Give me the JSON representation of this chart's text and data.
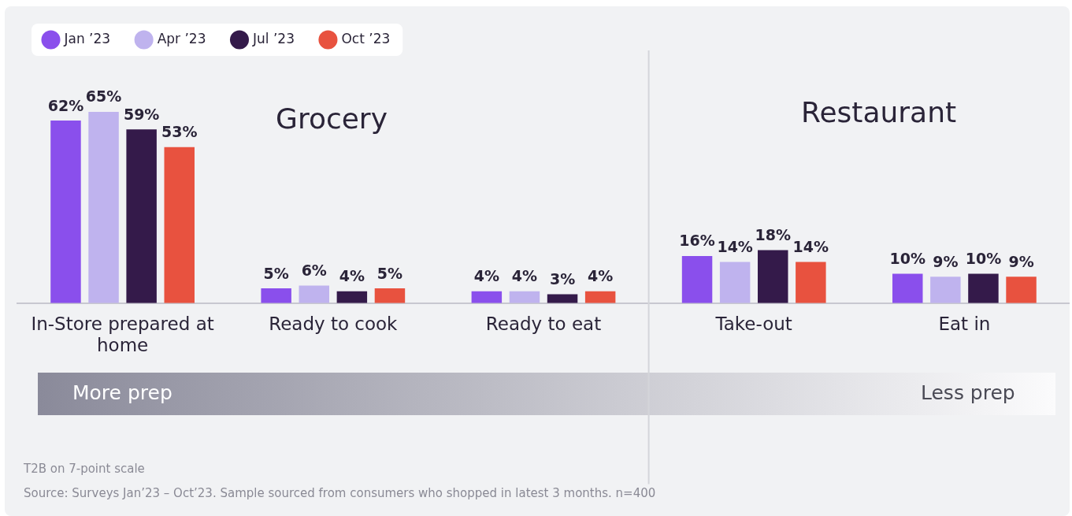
{
  "chart_data": {
    "type": "bar",
    "categories": [
      "In-Store prepared at home",
      "Ready to cook",
      "Ready to eat",
      "Take-out",
      "Eat in"
    ],
    "series": [
      {
        "name": "Jan ’23",
        "color": "#8a4fec",
        "values": [
          62,
          5,
          4,
          16,
          10
        ],
        "value_labels": [
          "62%",
          "5%",
          "4%",
          "16%",
          "10%"
        ]
      },
      {
        "name": "Apr ’23",
        "color": "#bfb3ee",
        "values": [
          65,
          6,
          4,
          14,
          9
        ],
        "value_labels": [
          "65%",
          "6%",
          "4%",
          "14%",
          "9%"
        ]
      },
      {
        "name": "Jul ’23",
        "color": "#341a4a",
        "values": [
          59,
          4,
          3,
          18,
          10
        ],
        "value_labels": [
          "59%",
          "4%",
          "3%",
          "18%",
          "10%"
        ]
      },
      {
        "name": "Oct ’23",
        "color": "#e8523f",
        "values": [
          53,
          5,
          4,
          14,
          9
        ],
        "value_labels": [
          "53%",
          "5%",
          "4%",
          "14%",
          "9%"
        ]
      }
    ],
    "legend": "top left",
    "grid": false,
    "annotations": [
      "Grocery",
      "Restaurant",
      "More prep",
      "Less prep",
      "T2B on 7-point scale",
      "Source: Surveys Jan’23 – Oct’23. Sample sourced from consumers who shopped in latest 3 months. n=400"
    ]
  }
}
